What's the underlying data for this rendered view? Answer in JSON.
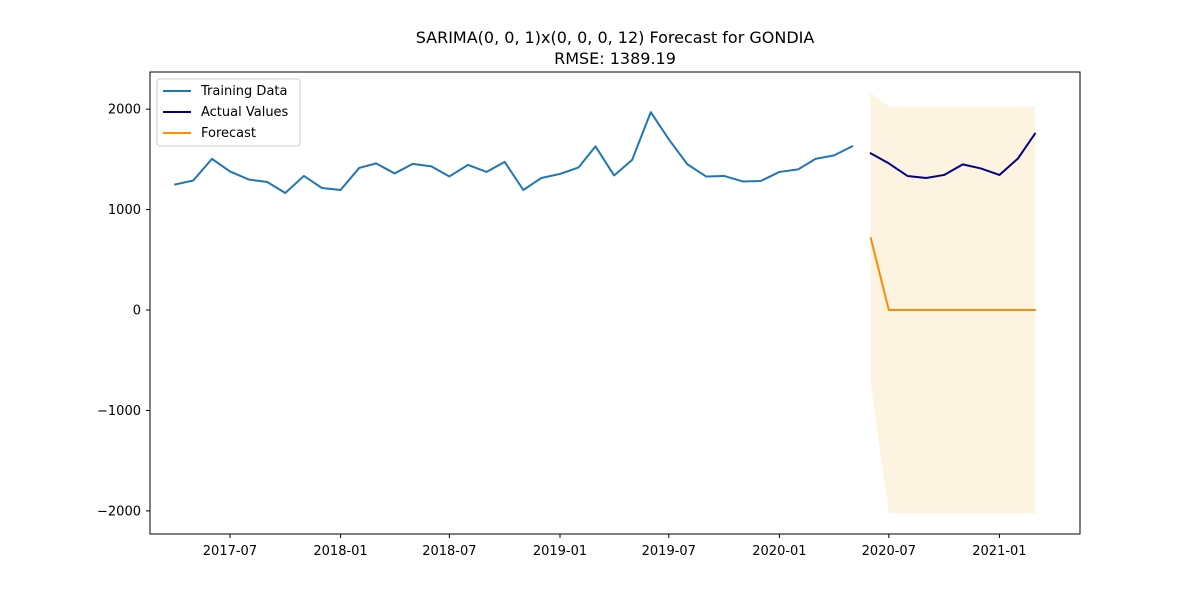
{
  "chart_data": {
    "type": "line",
    "title": "SARIMA(0, 0, 1)x(0, 0, 0, 12) Forecast for GONDIA",
    "subtitle": "RMSE: 1389.19",
    "xlabel": "",
    "ylabel": "",
    "x_ticks": [
      "2017-07",
      "2018-01",
      "2018-07",
      "2019-01",
      "2019-07",
      "2020-01",
      "2020-07",
      "2021-01"
    ],
    "y_ticks": [
      2000,
      1000,
      0,
      -1000,
      -2000
    ],
    "y_tick_labels": [
      "2000",
      "1000",
      "0",
      "−1000",
      "−2000"
    ],
    "xlim": [
      "2017-02-18",
      "2021-05-15"
    ],
    "ylim": [
      -2230,
      2370
    ],
    "grid": false,
    "legend_position": "top-left",
    "series": [
      {
        "name": "Training Data",
        "color": "#1f77b4",
        "x": [
          "2017-04",
          "2017-05",
          "2017-06",
          "2017-07",
          "2017-08",
          "2017-09",
          "2017-10",
          "2017-11",
          "2017-12",
          "2018-01",
          "2018-02",
          "2018-03",
          "2018-04",
          "2018-05",
          "2018-06",
          "2018-07",
          "2018-08",
          "2018-09",
          "2018-10",
          "2018-11",
          "2018-12",
          "2019-01",
          "2019-02",
          "2019-03",
          "2019-04",
          "2019-05",
          "2019-06",
          "2019-07",
          "2019-08",
          "2019-09",
          "2019-10",
          "2019-11",
          "2019-12",
          "2020-01",
          "2020-02",
          "2020-03",
          "2020-04",
          "2020-05"
        ],
        "values": [
          1250,
          1290,
          1505,
          1380,
          1300,
          1275,
          1165,
          1335,
          1215,
          1195,
          1415,
          1460,
          1360,
          1455,
          1430,
          1330,
          1445,
          1375,
          1475,
          1195,
          1315,
          1355,
          1420,
          1630,
          1340,
          1495,
          1970,
          1700,
          1450,
          1330,
          1335,
          1280,
          1285,
          1375,
          1400,
          1505,
          1540,
          1630
        ]
      },
      {
        "name": "Actual Values",
        "color": "#000080",
        "x": [
          "2020-06",
          "2020-07",
          "2020-08",
          "2020-09",
          "2020-10",
          "2020-11",
          "2020-12",
          "2021-01",
          "2021-02",
          "2021-03"
        ],
        "values": [
          1560,
          1460,
          1335,
          1315,
          1345,
          1450,
          1410,
          1345,
          1510,
          1755
        ]
      },
      {
        "name": "Forecast",
        "color": "#ff8c00",
        "x": [
          "2020-06",
          "2020-07",
          "2020-08",
          "2020-09",
          "2020-10",
          "2020-11",
          "2020-12",
          "2021-01",
          "2021-02",
          "2021-03"
        ],
        "values": [
          715,
          0,
          0,
          0,
          0,
          0,
          0,
          0,
          0,
          0
        ]
      }
    ],
    "confidence_interval": {
      "color": "#fdf3e1",
      "x": [
        "2020-06",
        "2020-07",
        "2020-08",
        "2020-09",
        "2020-10",
        "2020-11",
        "2020-12",
        "2021-01",
        "2021-02",
        "2021-03"
      ],
      "upper": [
        2160,
        2025,
        2025,
        2025,
        2025,
        2025,
        2025,
        2025,
        2025,
        2025
      ],
      "lower": [
        -735,
        -2025,
        -2025,
        -2025,
        -2025,
        -2025,
        -2025,
        -2025,
        -2025,
        -2025
      ]
    }
  }
}
